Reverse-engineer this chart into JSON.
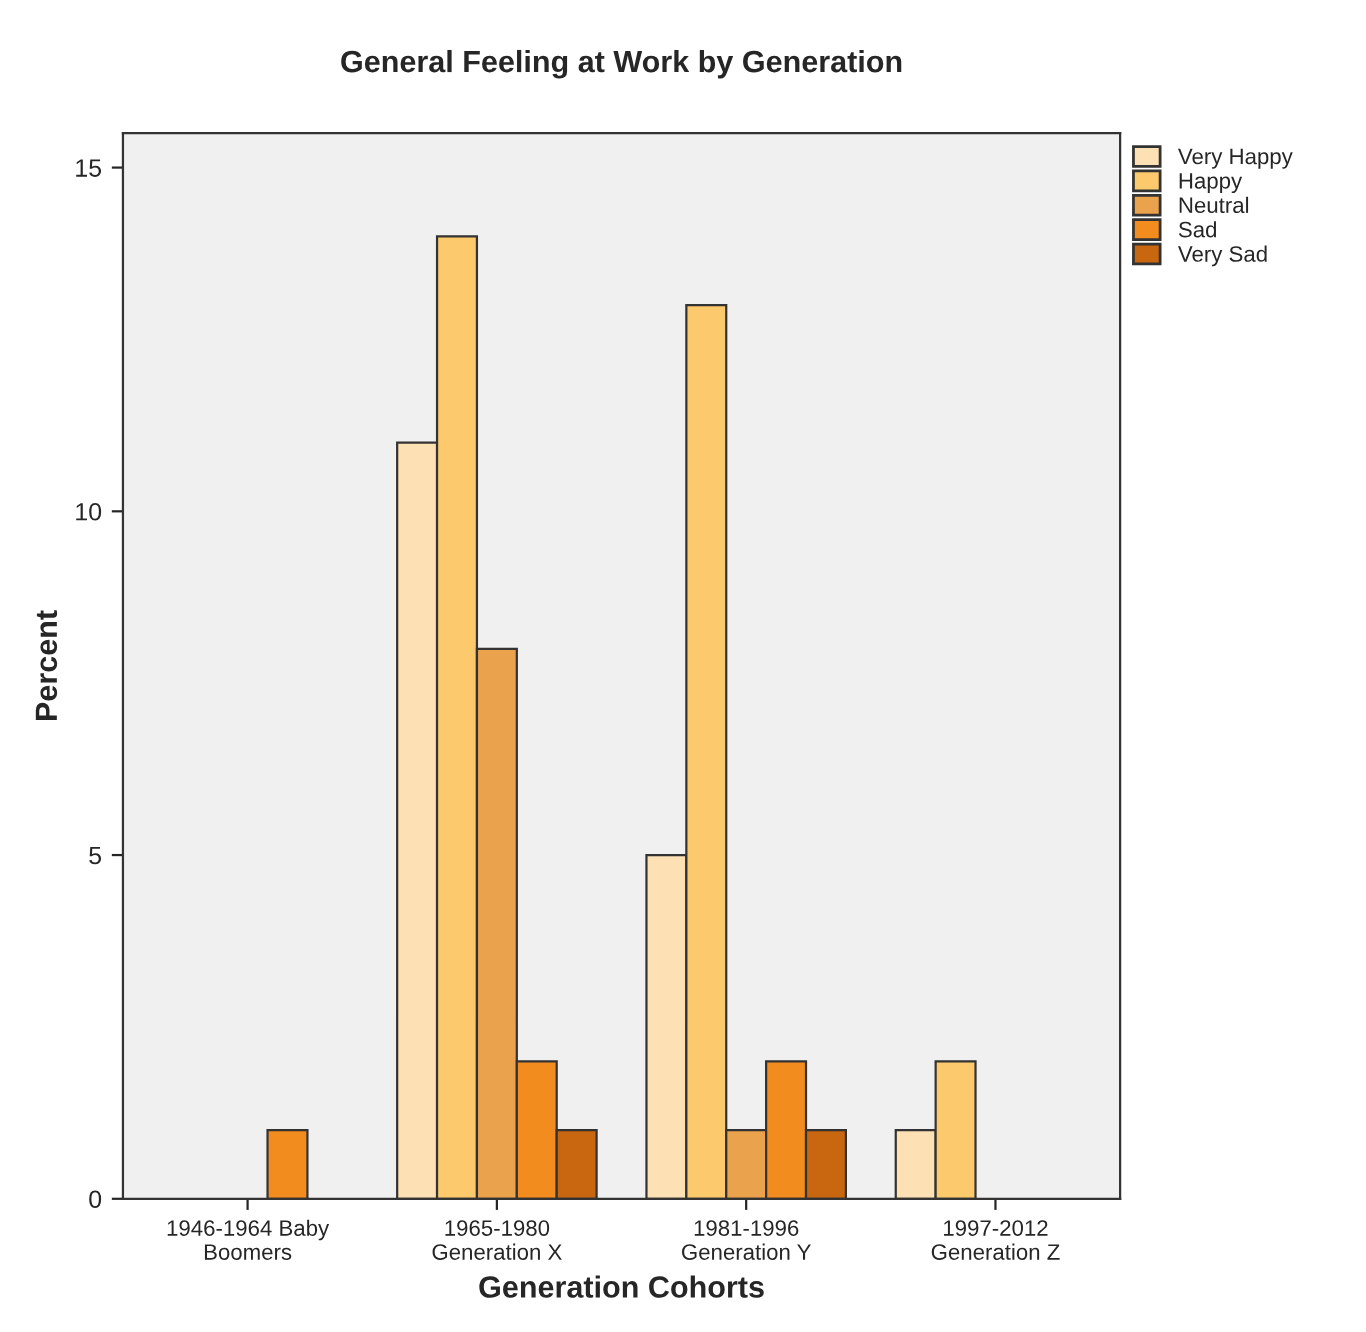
{
  "chart_data": {
    "type": "bar",
    "title": "General Feeling at Work by Generation",
    "xlabel": "Generation Cohorts",
    "ylabel": "Percent",
    "categories": [
      "1946-1964 Baby\nBoomers",
      "1965-1980\nGeneration X",
      "1981-1996\nGeneration Y",
      "1997-2012\nGeneration Z"
    ],
    "series": [
      {
        "name": "Very Happy",
        "color": "#fde0b4",
        "values": [
          null,
          11,
          5,
          1
        ]
      },
      {
        "name": "Happy",
        "color": "#fcca6c",
        "values": [
          null,
          14,
          13,
          2
        ]
      },
      {
        "name": "Neutral",
        "color": "#eba24c",
        "values": [
          null,
          8,
          1,
          null
        ]
      },
      {
        "name": "Sad",
        "color": "#f28c1e",
        "values": [
          1,
          2,
          2,
          null
        ]
      },
      {
        "name": "Very Sad",
        "color": "#c96610",
        "values": [
          null,
          1,
          1,
          null
        ]
      }
    ],
    "ylim": [
      0,
      15.5
    ],
    "yticks": [
      0,
      5,
      10,
      15
    ],
    "grid": false,
    "legend": "top right"
  }
}
